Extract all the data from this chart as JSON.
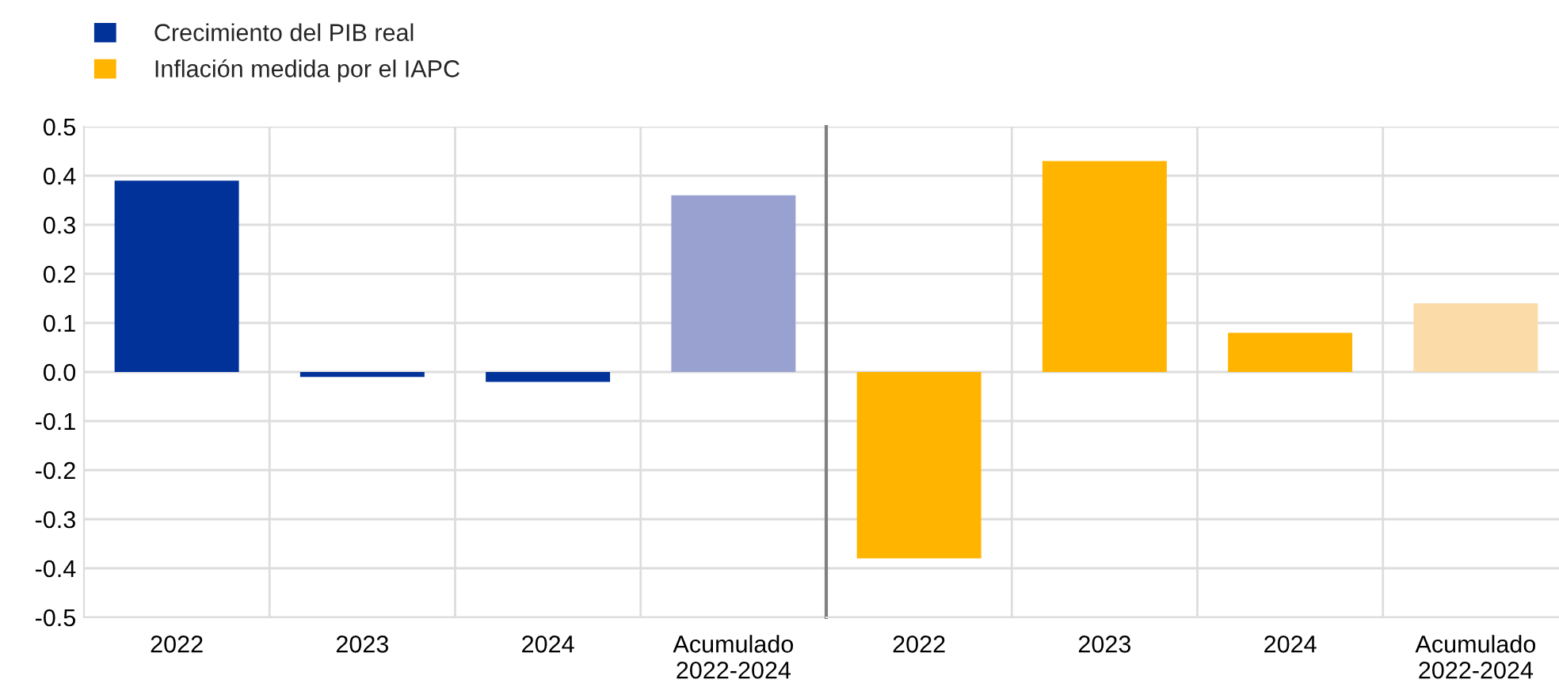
{
  "chart_data": [
    {
      "type": "bar",
      "categories": [
        "2022",
        "2023",
        "2024",
        "Acumulado\n2022-2024"
      ],
      "series": [
        {
          "name": "Crecimiento del PIB real",
          "color": "#003299",
          "colors": [
            "#003299",
            "#003299",
            "#003299",
            "#98a1d0"
          ],
          "values": [
            0.39,
            -0.01,
            -0.02,
            0.36
          ]
        }
      ],
      "ylim": [
        -0.5,
        0.5
      ],
      "yticks": [
        {
          "value": -0.5,
          "label": "-0.5"
        },
        {
          "value": -0.4,
          "label": "-0.4"
        },
        {
          "value": -0.3,
          "label": "-0.3"
        },
        {
          "value": -0.2,
          "label": "-0.2"
        },
        {
          "value": -0.1,
          "label": "-0.1"
        },
        {
          "value": 0.0,
          "label": "0.0"
        },
        {
          "value": 0.1,
          "label": "0.1"
        },
        {
          "value": 0.2,
          "label": "0.2"
        },
        {
          "value": 0.3,
          "label": "0.3"
        },
        {
          "value": 0.4,
          "label": "0.4"
        },
        {
          "value": 0.5,
          "label": "0.5"
        }
      ],
      "grid": true,
      "legend": "top left"
    },
    {
      "type": "bar",
      "categories": [
        "2022",
        "2023",
        "2024",
        "Acumulado\n2022-2024"
      ],
      "series": [
        {
          "name": "Inflación medida por el IAPC",
          "color": "#ffb400",
          "colors": [
            "#ffb400",
            "#ffb400",
            "#ffb400",
            "#fbdba7"
          ],
          "values": [
            -0.38,
            0.43,
            0.08,
            0.14
          ]
        }
      ],
      "ylim": [
        -0.5,
        0.5
      ],
      "yticks": [
        -0.5,
        -0.4,
        -0.3,
        -0.2,
        -0.1,
        0.0,
        0.1,
        0.2,
        0.3,
        0.4,
        0.5
      ],
      "tick_labels": "x",
      "grid": true,
      "legend": "top left"
    }
  ]
}
